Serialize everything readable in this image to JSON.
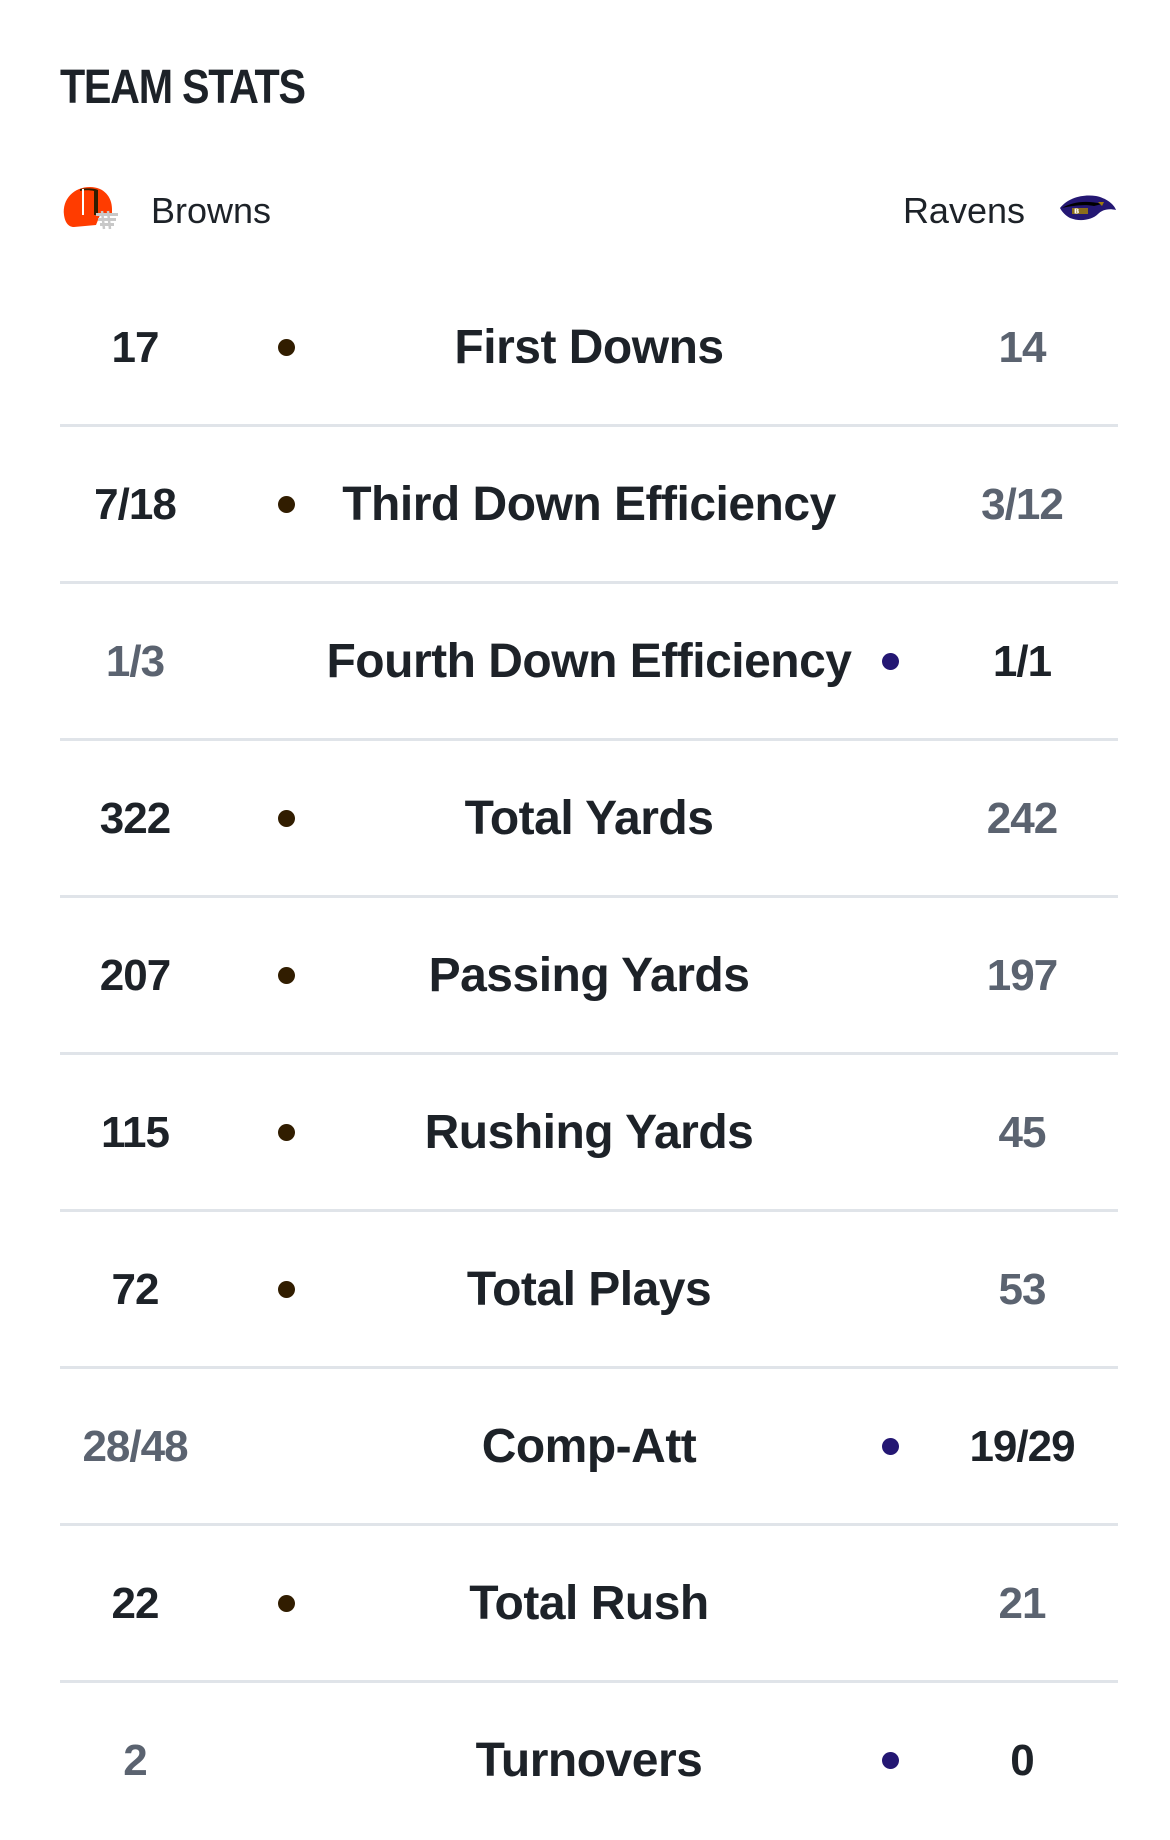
{
  "section": {
    "title": "TEAM STATS"
  },
  "teams": {
    "away": {
      "name": "Browns",
      "logo_icon": "browns-helmet-icon",
      "color": "#311d00",
      "accent": "#ff3c00"
    },
    "home": {
      "name": "Ravens",
      "logo_icon": "ravens-logo-icon",
      "color": "#241773",
      "accent": "#9e7c0c"
    }
  },
  "stats": [
    {
      "label": "First Downs",
      "away": "17",
      "home": "14",
      "leader": "away"
    },
    {
      "label": "Third Down Efficiency",
      "away": "7/18",
      "home": "3/12",
      "leader": "away"
    },
    {
      "label": "Fourth Down Efficiency",
      "away": "1/3",
      "home": "1/1",
      "leader": "home"
    },
    {
      "label": "Total Yards",
      "away": "322",
      "home": "242",
      "leader": "away"
    },
    {
      "label": "Passing Yards",
      "away": "207",
      "home": "197",
      "leader": "away"
    },
    {
      "label": "Rushing Yards",
      "away": "115",
      "home": "45",
      "leader": "away"
    },
    {
      "label": "Total Plays",
      "away": "72",
      "home": "53",
      "leader": "away"
    },
    {
      "label": "Comp-Att",
      "away": "28/48",
      "home": "19/29",
      "leader": "home"
    },
    {
      "label": "Total Rush",
      "away": "22",
      "home": "21",
      "leader": "away"
    },
    {
      "label": "Turnovers",
      "away": "2",
      "home": "0",
      "leader": "home"
    }
  ],
  "colors": {
    "text_primary": "#1d2228",
    "text_secondary": "#5b6370",
    "divider": "#e0e4e9"
  }
}
